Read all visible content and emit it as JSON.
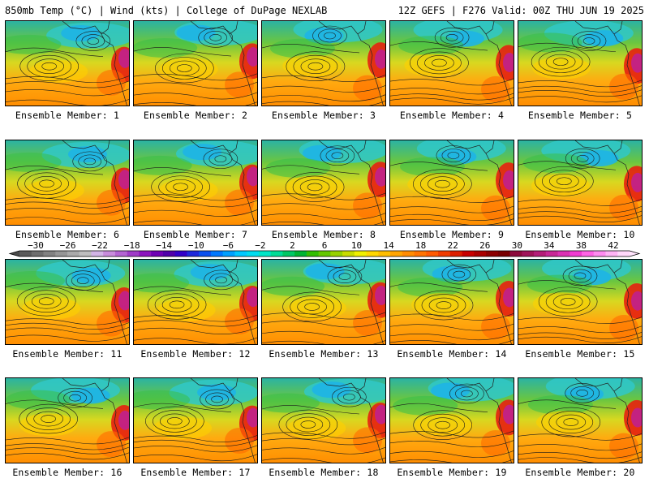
{
  "header": {
    "left": "850mb Temp (°C) | Wind (kts) | College of DuPage NEXLAB",
    "right": "12Z GEFS | F276 Valid: 00Z THU JUN 19 2025"
  },
  "members": [
    {
      "label": "Ensemble Member: 1"
    },
    {
      "label": "Ensemble Member: 2"
    },
    {
      "label": "Ensemble Member: 3"
    },
    {
      "label": "Ensemble Member: 4"
    },
    {
      "label": "Ensemble Member: 5"
    },
    {
      "label": "Ensemble Member: 6"
    },
    {
      "label": "Ensemble Member: 7"
    },
    {
      "label": "Ensemble Member: 8"
    },
    {
      "label": "Ensemble Member: 9"
    },
    {
      "label": "Ensemble Member: 10"
    },
    {
      "label": "Ensemble Member: 11"
    },
    {
      "label": "Ensemble Member: 12"
    },
    {
      "label": "Ensemble Member: 13"
    },
    {
      "label": "Ensemble Member: 14"
    },
    {
      "label": "Ensemble Member: 15"
    },
    {
      "label": "Ensemble Member: 16"
    },
    {
      "label": "Ensemble Member: 17"
    },
    {
      "label": "Ensemble Member: 18"
    },
    {
      "label": "Ensemble Member: 19"
    },
    {
      "label": "Ensemble Member: 20"
    }
  ],
  "colorbar": {
    "ticks": [
      "−30",
      "−26",
      "−22",
      "−18",
      "−14",
      "−10",
      "−6",
      "−2",
      "2",
      "6",
      "10",
      "14",
      "18",
      "22",
      "26",
      "30",
      "34",
      "38",
      "42"
    ],
    "colors": [
      "#5a5a5a",
      "#6e6e6e",
      "#828282",
      "#969696",
      "#aaaaaa",
      "#bebebe",
      "#d2b4e6",
      "#c88cdc",
      "#b464d2",
      "#a03cc8",
      "#8c14be",
      "#6e00b4",
      "#5000aa",
      "#3200c8",
      "#1e28dc",
      "#0a50f0",
      "#0078ff",
      "#00a0ff",
      "#00c8ff",
      "#00dcf0",
      "#00e6c8",
      "#00dc96",
      "#00c864",
      "#00b432",
      "#32be00",
      "#64c800",
      "#96d200",
      "#c8dc00",
      "#f0f000",
      "#ffd700",
      "#ffbe00",
      "#ffa500",
      "#ff8c00",
      "#ff7300",
      "#ff5a00",
      "#f03c00",
      "#dc1e00",
      "#c80000",
      "#aa0000",
      "#8c0000",
      "#780000",
      "#8c0a3c",
      "#a0145a",
      "#b41e78",
      "#c82896",
      "#dc32b4",
      "#f03cd2",
      "#ff64e6",
      "#ff8cf0",
      "#ffb4f5",
      "#ffd7fa"
    ]
  }
}
